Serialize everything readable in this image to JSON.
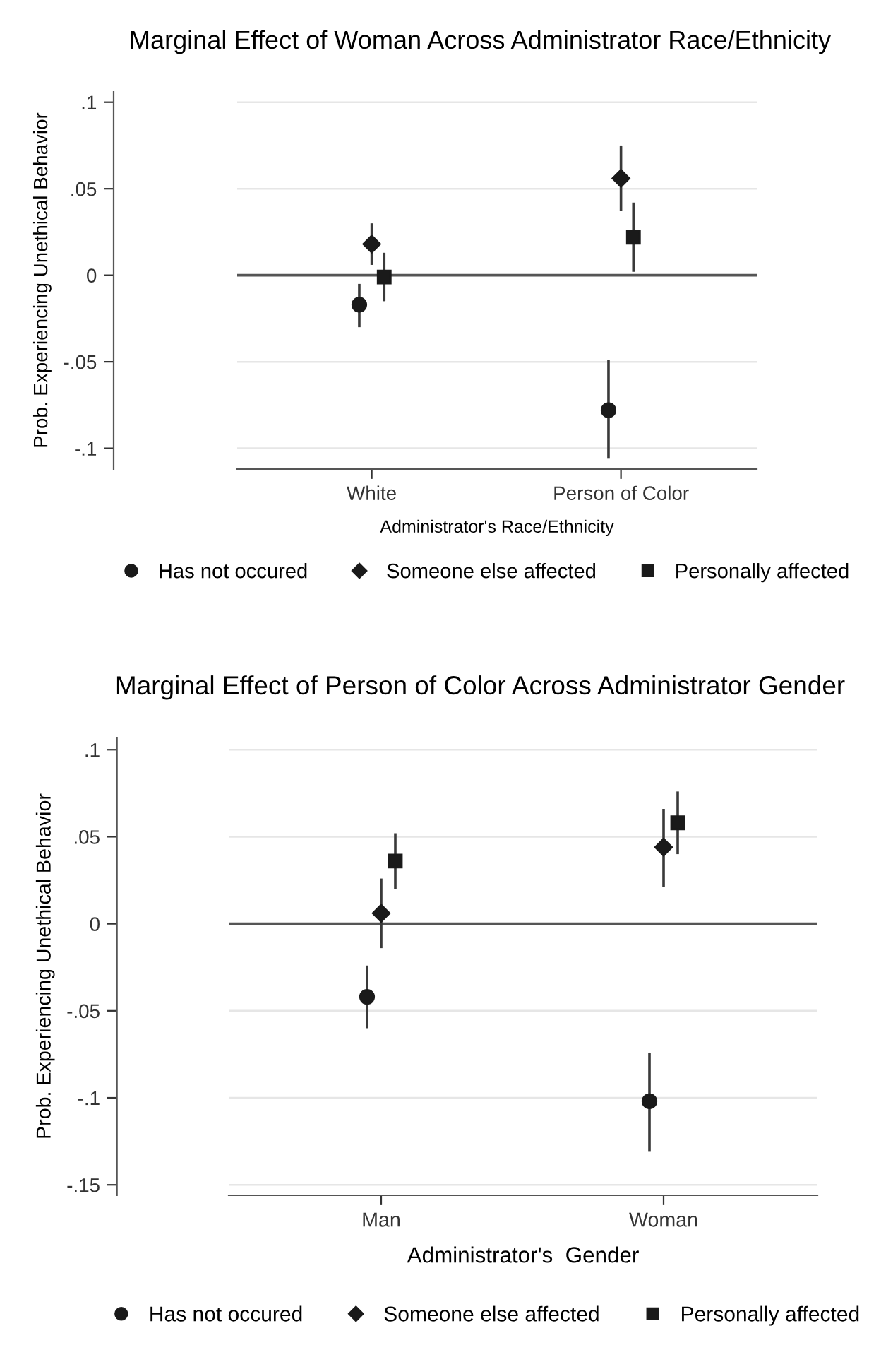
{
  "chart_data": [
    {
      "type": "scatter",
      "title": "Marginal Effect of Woman Across Administrator Race/Ethnicity",
      "xlabel": "Administrator's Race/Ethnicity",
      "ylabel": "Prob. Experiencing Unethical Behavior",
      "categories": [
        "White",
        "Person of Color"
      ],
      "series": [
        {
          "name": "Has not occured",
          "color": "#1a1a1a",
          "marker": "circle",
          "values": [
            -0.017,
            -0.078
          ],
          "errors": [
            [
              -0.03,
              -0.005
            ],
            [
              -0.106,
              -0.049
            ]
          ]
        },
        {
          "name": "Someone else affected",
          "color": "#1a1a1a",
          "marker": "diamond",
          "values": [
            0.018,
            0.056
          ],
          "errors": [
            [
              0.006,
              0.03
            ],
            [
              0.037,
              0.075
            ]
          ]
        },
        {
          "name": "Personally affected",
          "color": "#1a1a1a",
          "marker": "square",
          "values": [
            -0.001,
            0.022
          ],
          "errors": [
            [
              -0.015,
              0.013
            ],
            [
              0.002,
              0.042
            ]
          ]
        }
      ],
      "ylim": [
        -0.112,
        0.106
      ],
      "yticks": [
        {
          "value": -0.1,
          "label": "-.1"
        },
        {
          "value": -0.05,
          "label": "-.05"
        },
        0,
        {
          "value": 0.05,
          "label": ".05"
        },
        {
          "value": 0.1,
          "label": ".1"
        }
      ],
      "ref_lines": [
        {
          "axis": "y",
          "value": 0,
          "color": "#555555"
        }
      ],
      "grid": "y",
      "legend": "bottom"
    },
    {
      "type": "scatter",
      "title": "Marginal Effect of Person of Color Across Administrator Gender",
      "xlabel": "Administrator's  Gender",
      "ylabel": "Prob. Experiencing Unethical Behavior",
      "categories": [
        "Man",
        "Woman"
      ],
      "series": [
        {
          "name": "Has not occured",
          "color": "#1a1a1a",
          "marker": "circle",
          "values": [
            -0.042,
            -0.102
          ],
          "errors": [
            [
              -0.06,
              -0.024
            ],
            [
              -0.131,
              -0.074
            ]
          ]
        },
        {
          "name": "Someone else affected",
          "color": "#1a1a1a",
          "marker": "diamond",
          "values": [
            0.006,
            0.044
          ],
          "errors": [
            [
              -0.014,
              0.026
            ],
            [
              0.021,
              0.066
            ]
          ]
        },
        {
          "name": "Personally affected",
          "color": "#1a1a1a",
          "marker": "square",
          "values": [
            0.036,
            0.058
          ],
          "errors": [
            [
              0.02,
              0.052
            ],
            [
              0.04,
              0.076
            ]
          ]
        }
      ],
      "ylim": [
        -0.156,
        0.107
      ],
      "yticks": [
        {
          "value": -0.15,
          "label": "-.15"
        },
        {
          "value": -0.1,
          "label": "-.1"
        },
        {
          "value": -0.05,
          "label": "-.05"
        },
        0,
        {
          "value": 0.05,
          "label": ".05"
        },
        {
          "value": 0.1,
          "label": ".1"
        }
      ],
      "ref_lines": [
        {
          "axis": "y",
          "value": 0,
          "color": "#555555"
        }
      ],
      "grid": "y",
      "legend": "bottom"
    }
  ]
}
